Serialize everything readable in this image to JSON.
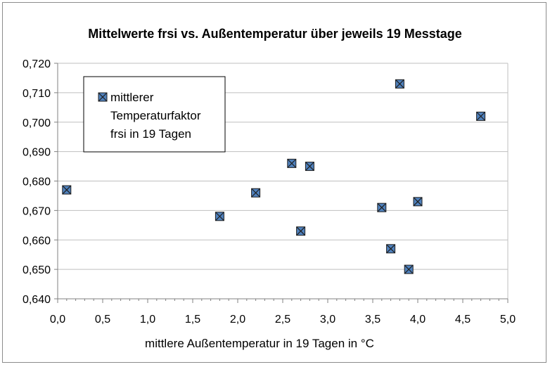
{
  "chart_data": {
    "type": "scatter",
    "title": "Mittelwerte frsi vs. Außentemperatur über jeweils 19 Messtage",
    "xlabel": "mittlere Außentemperatur in 19 Tagen in °C",
    "ylabel": "",
    "xlim": [
      0.0,
      5.0
    ],
    "ylim": [
      0.64,
      0.72
    ],
    "x_ticks": [
      "0,0",
      "0,5",
      "1,0",
      "1,5",
      "2,0",
      "2,5",
      "3,0",
      "3,5",
      "4,0",
      "4,5",
      "5,0"
    ],
    "y_ticks": [
      "0,640",
      "0,650",
      "0,660",
      "0,670",
      "0,680",
      "0,690",
      "0,700",
      "0,710",
      "0,720"
    ],
    "grid": "horizontal",
    "legend_position": "top-left",
    "marker_color": "#4f81bd",
    "series": [
      {
        "name": "mittlerer Temperaturfaktor frsi in 19 Tagen",
        "legend_lines": [
          "mittlerer",
          "Temperaturfaktor",
          "frsi in 19 Tagen"
        ],
        "points": [
          {
            "x": 0.1,
            "y": 0.677
          },
          {
            "x": 1.8,
            "y": 0.668
          },
          {
            "x": 2.2,
            "y": 0.676
          },
          {
            "x": 2.6,
            "y": 0.686
          },
          {
            "x": 2.7,
            "y": 0.663
          },
          {
            "x": 2.8,
            "y": 0.685
          },
          {
            "x": 3.6,
            "y": 0.671
          },
          {
            "x": 3.7,
            "y": 0.657
          },
          {
            "x": 3.8,
            "y": 0.713
          },
          {
            "x": 3.9,
            "y": 0.65
          },
          {
            "x": 4.0,
            "y": 0.673
          },
          {
            "x": 4.7,
            "y": 0.702
          }
        ]
      }
    ]
  }
}
